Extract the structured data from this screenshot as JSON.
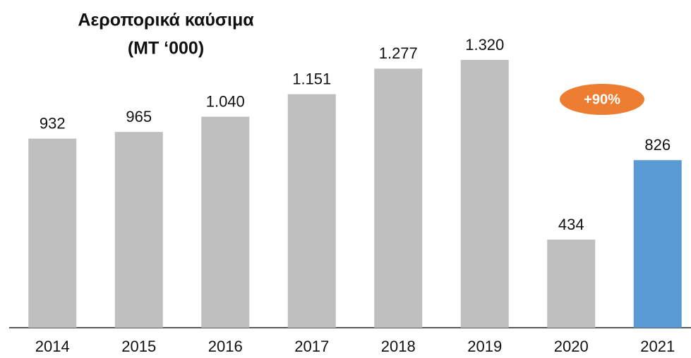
{
  "chart_data": {
    "type": "bar",
    "title": "Αεροπορικά καύσιμα",
    "subtitle": "(MT ‘000)",
    "categories": [
      "2014",
      "2015",
      "2016",
      "2017",
      "2018",
      "2019",
      "2020",
      "2021"
    ],
    "values": [
      932,
      965,
      1040,
      1151,
      1277,
      1320,
      434,
      826
    ],
    "value_labels": [
      "932",
      "965",
      "1.040",
      "1.151",
      "1.277",
      "1.320",
      "434",
      "826"
    ],
    "colors": [
      "#bfbfbf",
      "#bfbfbf",
      "#bfbfbf",
      "#bfbfbf",
      "#bfbfbf",
      "#bfbfbf",
      "#bfbfbf",
      "#5b9bd5"
    ],
    "annotation": "+90%",
    "annotation_color": "#ed7d31"
  }
}
